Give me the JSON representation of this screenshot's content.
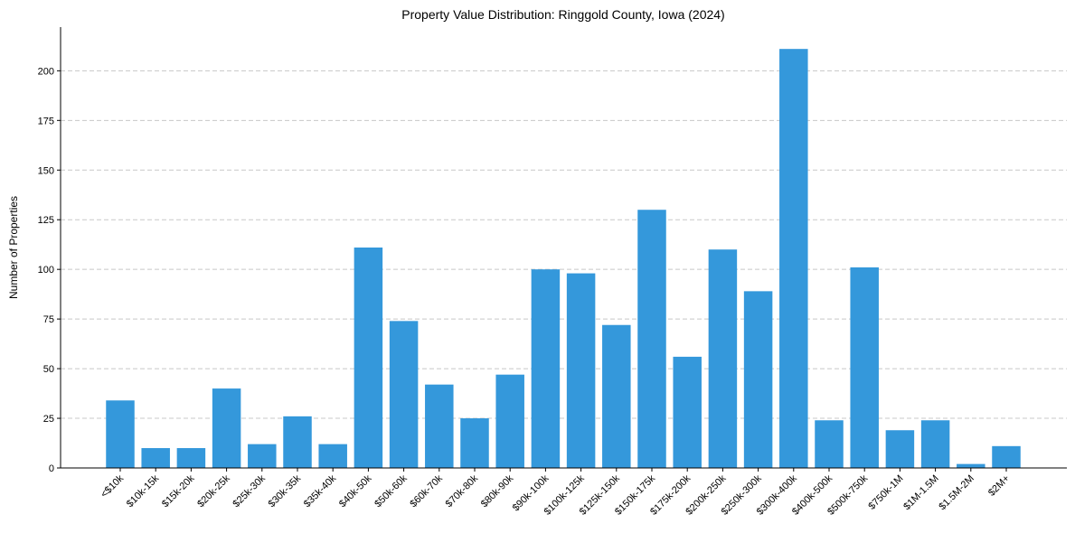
{
  "chart_data": {
    "type": "bar",
    "title": "Property Value Distribution: Ringgold County, Iowa (2024)",
    "xlabel": "",
    "ylabel": "Number of Properties",
    "ylim": [
      0,
      222
    ],
    "yticks": [
      0,
      25,
      50,
      75,
      100,
      125,
      150,
      175,
      200
    ],
    "grid": "horizontal-dashed",
    "bar_color": "#3498db",
    "categories": [
      "<$10k",
      "$10k-15k",
      "$15k-20k",
      "$20k-25k",
      "$25k-30k",
      "$30k-35k",
      "$35k-40k",
      "$40k-50k",
      "$50k-60k",
      "$60k-70k",
      "$70k-80k",
      "$80k-90k",
      "$90k-100k",
      "$100k-125k",
      "$125k-150k",
      "$150k-175k",
      "$175k-200k",
      "$200k-250k",
      "$250k-300k",
      "$300k-400k",
      "$400k-500k",
      "$500k-750k",
      "$750k-1M",
      "$1M-1.5M",
      "$1.5M-2M",
      "$2M+"
    ],
    "values": [
      34,
      10,
      10,
      40,
      12,
      26,
      12,
      111,
      74,
      42,
      25,
      47,
      100,
      98,
      72,
      130,
      56,
      110,
      89,
      211,
      24,
      101,
      19,
      24,
      2,
      11
    ]
  }
}
